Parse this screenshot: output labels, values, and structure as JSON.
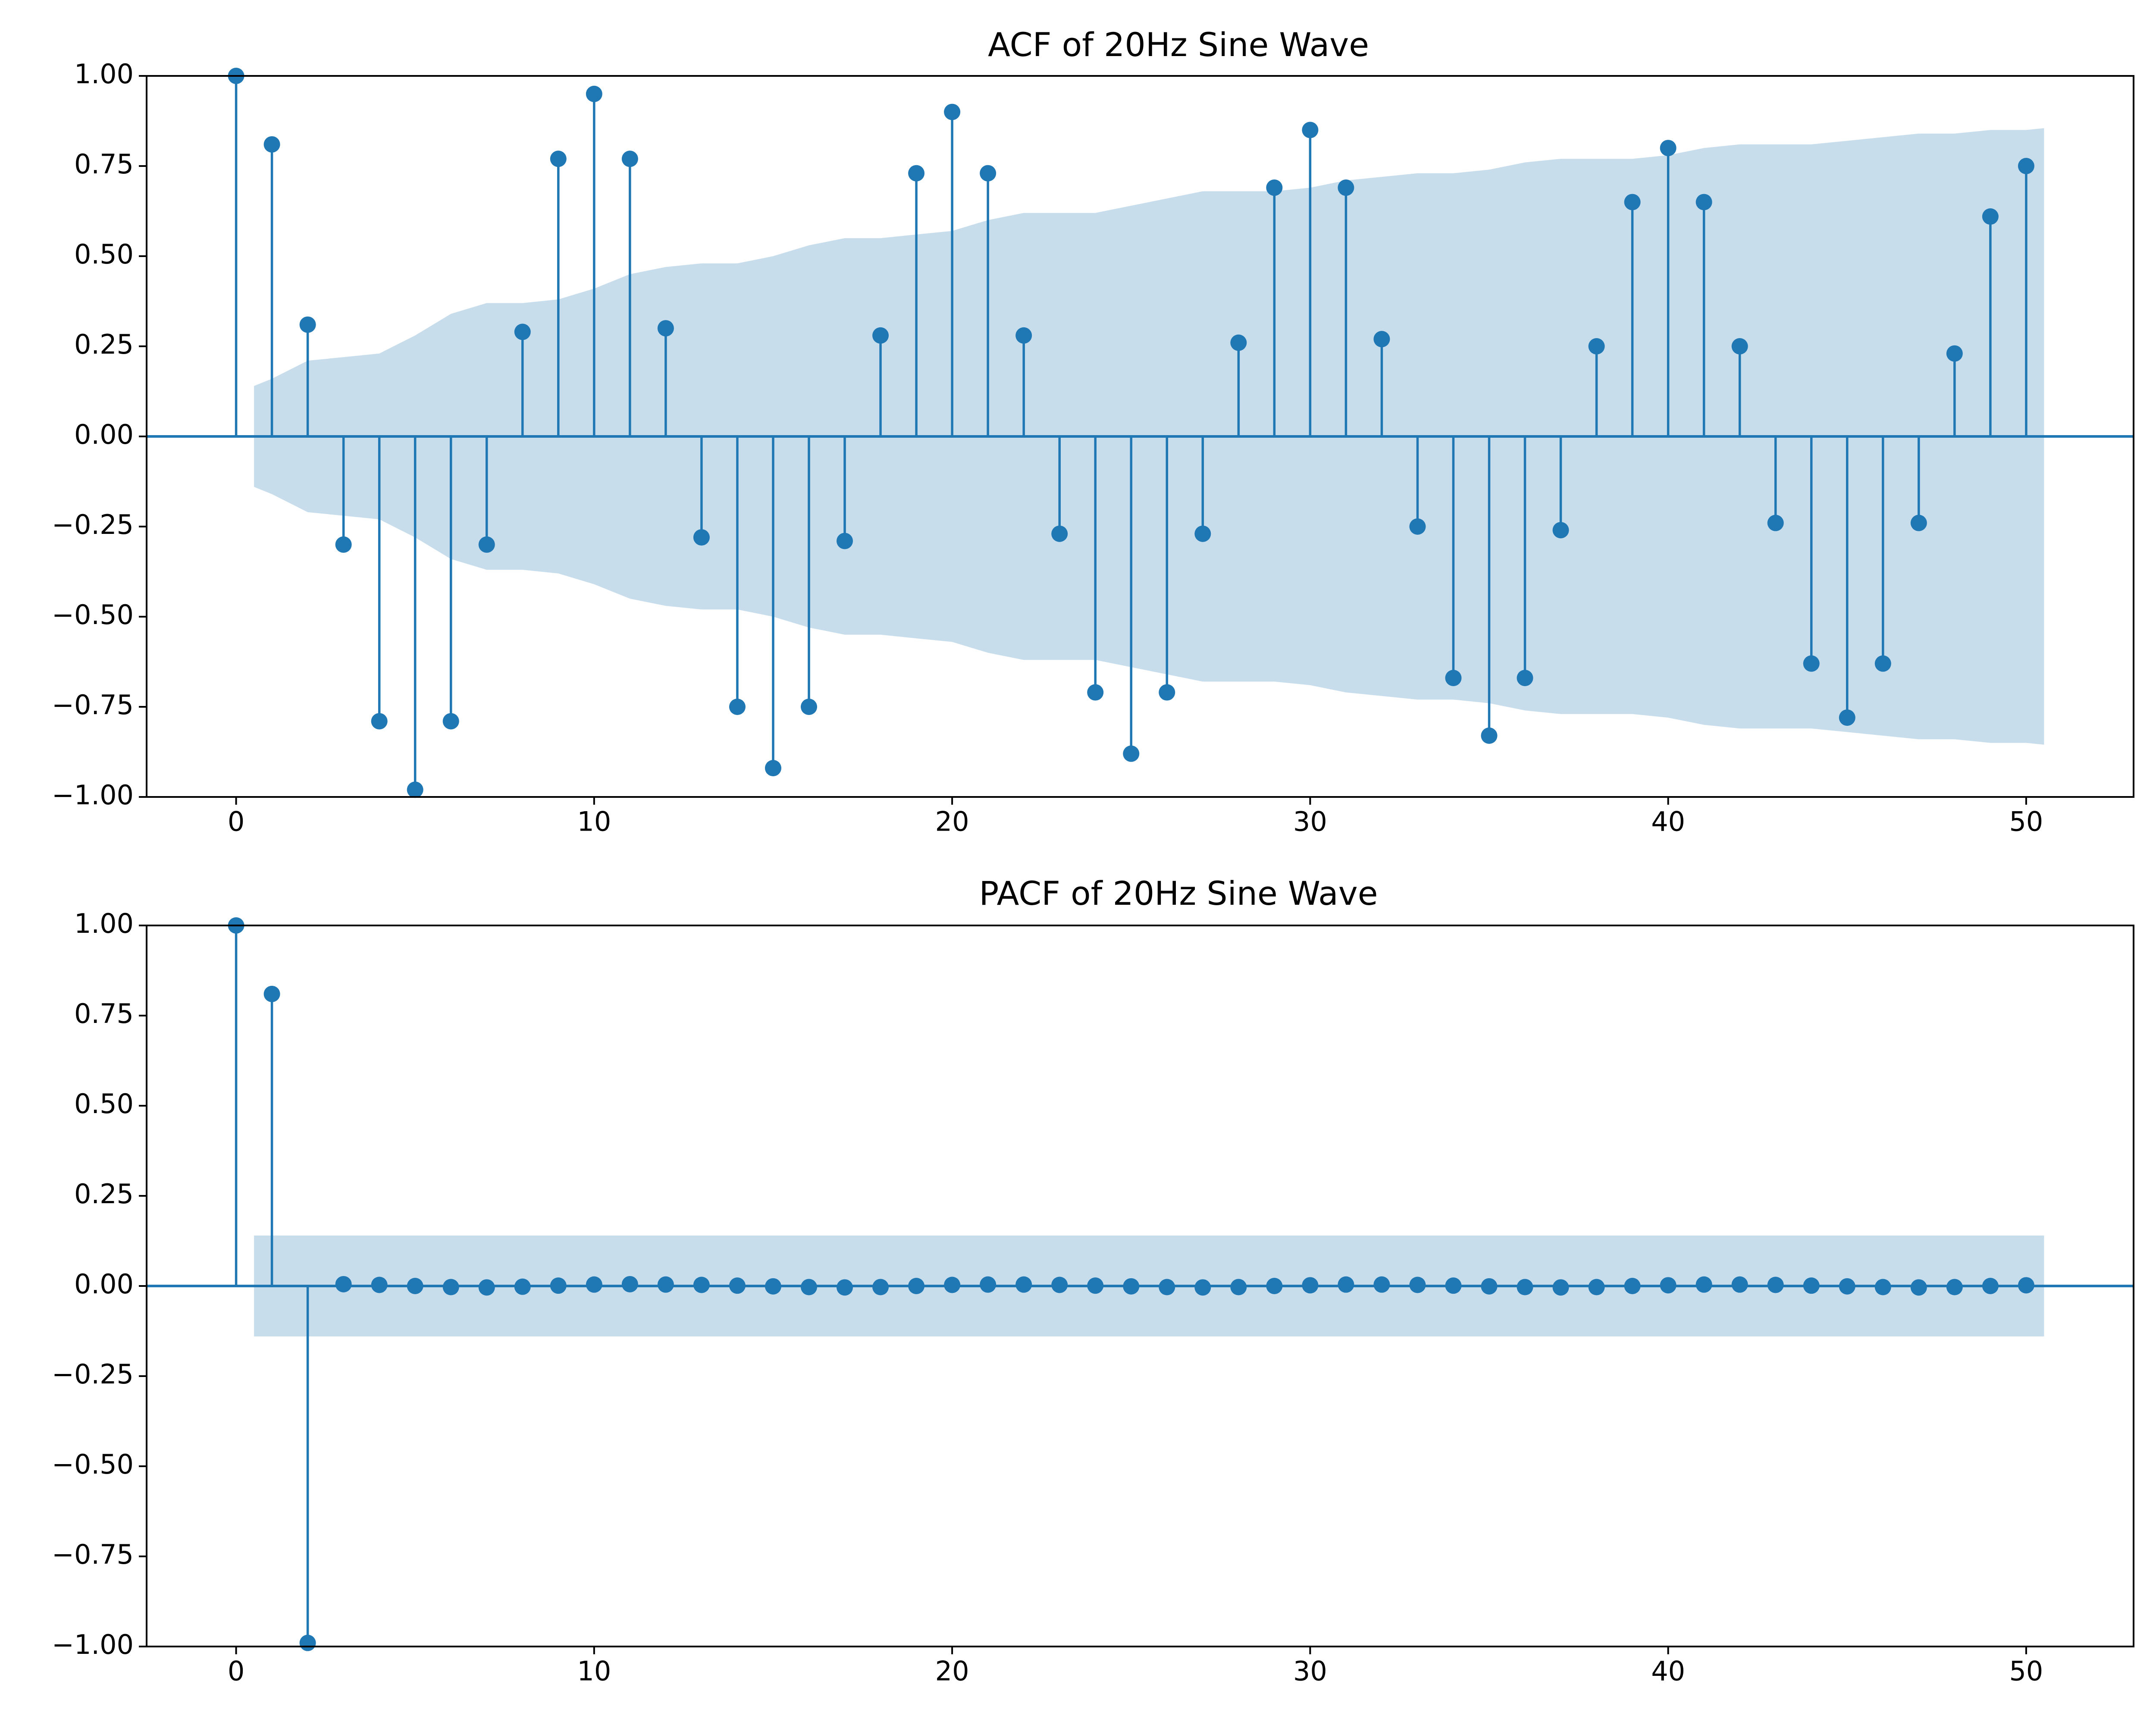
{
  "colors": {
    "stem": "#1f77b4",
    "band": "#1f77b4",
    "band_opacity": 0.25,
    "axis": "#000000",
    "background": "#ffffff"
  },
  "chart_data": [
    {
      "type": "stem",
      "title": "ACF of 20Hz Sine Wave",
      "xlabel": "",
      "ylabel": "",
      "xlim": [
        -2.5,
        53
      ],
      "ylim": [
        -1.0,
        1.0
      ],
      "xticks": [
        0,
        10,
        20,
        30,
        40,
        50
      ],
      "xtick_labels": [
        "0",
        "10",
        "20",
        "30",
        "40",
        "50"
      ],
      "yticks": [
        1.0,
        0.75,
        0.5,
        0.25,
        0.0,
        -0.25,
        -0.5,
        -0.75,
        -1.0
      ],
      "ytick_labels": [
        "1.00",
        "0.75",
        "0.50",
        "0.25",
        "0.00",
        "−0.25",
        "−0.50",
        "−0.75",
        "−1.00"
      ],
      "grid": false,
      "x": [
        0,
        1,
        2,
        3,
        4,
        5,
        6,
        7,
        8,
        9,
        10,
        11,
        12,
        13,
        14,
        15,
        16,
        17,
        18,
        19,
        20,
        21,
        22,
        23,
        24,
        25,
        26,
        27,
        28,
        29,
        30,
        31,
        32,
        33,
        34,
        35,
        36,
        37,
        38,
        39,
        40,
        41,
        42,
        43,
        44,
        45,
        46,
        47,
        48,
        49,
        50
      ],
      "values": [
        1.0,
        0.81,
        0.31,
        -0.3,
        -0.79,
        -0.98,
        -0.79,
        -0.3,
        0.29,
        0.77,
        0.95,
        0.77,
        0.3,
        -0.28,
        -0.75,
        -0.92,
        -0.75,
        -0.29,
        0.28,
        0.73,
        0.9,
        0.73,
        0.28,
        -0.27,
        -0.71,
        -0.88,
        -0.71,
        -0.27,
        0.26,
        0.69,
        0.85,
        0.69,
        0.27,
        -0.25,
        -0.67,
        -0.83,
        -0.67,
        -0.26,
        0.25,
        0.65,
        0.8,
        0.65,
        0.25,
        -0.24,
        -0.63,
        -0.78,
        -0.63,
        -0.24,
        0.23,
        0.61,
        0.75
      ],
      "confidence_band": {
        "x": [
          0.5,
          1,
          2,
          3,
          4,
          5,
          6,
          7,
          8,
          9,
          10,
          11,
          12,
          13,
          14,
          15,
          16,
          17,
          18,
          19,
          20,
          21,
          22,
          23,
          24,
          25,
          26,
          27,
          28,
          29,
          30,
          31,
          32,
          33,
          34,
          35,
          36,
          37,
          38,
          39,
          40,
          41,
          42,
          43,
          44,
          45,
          46,
          47,
          48,
          49,
          50,
          50.5
        ],
        "upper": [
          0.14,
          0.16,
          0.21,
          0.22,
          0.23,
          0.28,
          0.34,
          0.37,
          0.37,
          0.38,
          0.41,
          0.45,
          0.47,
          0.48,
          0.48,
          0.5,
          0.53,
          0.55,
          0.55,
          0.56,
          0.57,
          0.6,
          0.62,
          0.62,
          0.62,
          0.64,
          0.66,
          0.68,
          0.68,
          0.68,
          0.69,
          0.71,
          0.72,
          0.73,
          0.73,
          0.74,
          0.76,
          0.77,
          0.77,
          0.77,
          0.78,
          0.8,
          0.81,
          0.81,
          0.81,
          0.82,
          0.83,
          0.84,
          0.84,
          0.85,
          0.85,
          0.855
        ]
      }
    },
    {
      "type": "stem",
      "title": "PACF of 20Hz Sine Wave",
      "xlabel": "",
      "ylabel": "",
      "xlim": [
        -2.5,
        53
      ],
      "ylim": [
        -1.0,
        1.0
      ],
      "xticks": [
        0,
        10,
        20,
        30,
        40,
        50
      ],
      "xtick_labels": [
        "0",
        "10",
        "20",
        "30",
        "40",
        "50"
      ],
      "yticks": [
        1.0,
        0.75,
        0.5,
        0.25,
        0.0,
        -0.25,
        -0.5,
        -0.75,
        -1.0
      ],
      "ytick_labels": [
        "1.00",
        "0.75",
        "0.50",
        "0.25",
        "0.00",
        "−0.25",
        "−0.50",
        "−0.75",
        "−1.00"
      ],
      "grid": false,
      "x": [
        0,
        1,
        2,
        3,
        4,
        5,
        6,
        7,
        8,
        9,
        10,
        11,
        12,
        13,
        14,
        15,
        16,
        17,
        18,
        19,
        20,
        21,
        22,
        23,
        24,
        25,
        26,
        27,
        28,
        29,
        30,
        31,
        32,
        33,
        34,
        35,
        36,
        37,
        38,
        39,
        40,
        41,
        42,
        43,
        44,
        45,
        46,
        47,
        48,
        49,
        50
      ],
      "values": [
        1.0,
        0.81,
        -0.99,
        0.005,
        0.003,
        0.0,
        -0.003,
        -0.004,
        -0.002,
        0.001,
        0.004,
        0.005,
        0.004,
        0.003,
        0.001,
        -0.001,
        -0.003,
        -0.004,
        -0.003,
        0.0,
        0.003,
        0.004,
        0.004,
        0.003,
        0.001,
        -0.001,
        -0.003,
        -0.004,
        -0.003,
        0.0,
        0.002,
        0.004,
        0.004,
        0.003,
        0.001,
        -0.001,
        -0.003,
        -0.004,
        -0.003,
        0.0,
        0.002,
        0.004,
        0.004,
        0.003,
        0.001,
        -0.001,
        -0.003,
        -0.004,
        -0.003,
        0.0,
        0.002
      ],
      "confidence_band": {
        "x": [
          0.5,
          50.5
        ],
        "upper": [
          0.14,
          0.14
        ]
      }
    }
  ]
}
